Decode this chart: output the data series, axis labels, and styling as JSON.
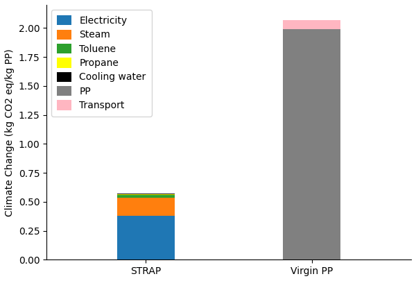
{
  "categories": [
    "STRAP",
    "Virgin PP"
  ],
  "components": [
    "Electricity",
    "Steam",
    "Toluene",
    "Propane",
    "Cooling water",
    "PP",
    "Transport"
  ],
  "colors": [
    "#1f77b4",
    "#ff7f0e",
    "#2ca02c",
    "#ffff00",
    "#000000",
    "#808080",
    "#ffb6c1"
  ],
  "values": {
    "STRAP": [
      0.38,
      0.155,
      0.022,
      0.008,
      0.003,
      0.0,
      0.0
    ],
    "Virgin PP": [
      0.0,
      0.0,
      0.0,
      0.0,
      0.0,
      1.99,
      0.08
    ]
  },
  "ylabel": "Climate Change (kg CO2 eq/kg PP)",
  "ylim": [
    0,
    2.2
  ],
  "yticks": [
    0.0,
    0.25,
    0.5,
    0.75,
    1.0,
    1.25,
    1.5,
    1.75,
    2.0
  ],
  "bar_width": 0.35,
  "figsize": [
    6.0,
    4.05
  ],
  "dpi": 100,
  "legend_fontsize": 10,
  "tick_fontsize": 10,
  "ylabel_fontsize": 10
}
